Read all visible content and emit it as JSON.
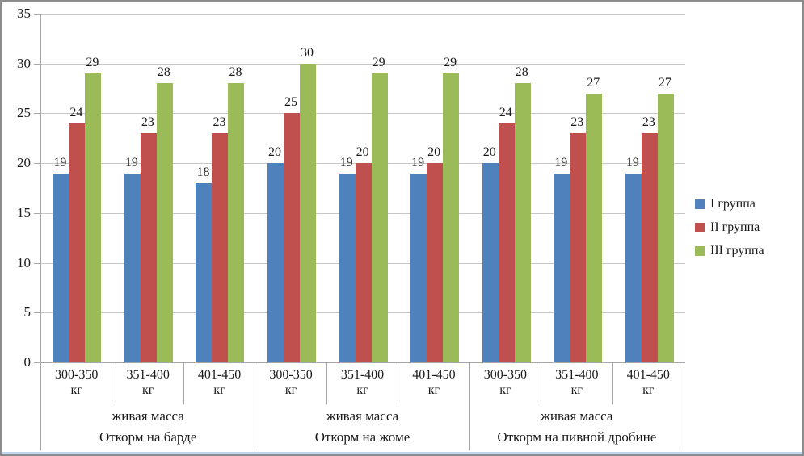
{
  "chart_data": {
    "type": "bar",
    "title": "",
    "xlabel": "",
    "ylabel": "",
    "ylim": [
      0,
      35
    ],
    "yticks": [
      0,
      5,
      10,
      15,
      20,
      25,
      30,
      35
    ],
    "grid": true,
    "data_labels": true,
    "legend_position": "right-middle",
    "groups": [
      {
        "label": "Откорм на барде",
        "sublabel": "живая масса",
        "categories": [
          {
            "range": "300-350",
            "unit": "кг"
          },
          {
            "range": "351-400",
            "unit": "кг"
          },
          {
            "range": "401-450",
            "unit": "кг"
          }
        ]
      },
      {
        "label": "Откорм на жоме",
        "sublabel": "живая масса",
        "categories": [
          {
            "range": "300-350",
            "unit": "кг"
          },
          {
            "range": "351-400",
            "unit": "кг"
          },
          {
            "range": "401-450",
            "unit": "кг"
          }
        ]
      },
      {
        "label": "Откорм на пивной дробине",
        "sublabel": "живая масса",
        "categories": [
          {
            "range": "300-350",
            "unit": "кг"
          },
          {
            "range": "351-400",
            "unit": "кг"
          },
          {
            "range": "401-450",
            "unit": "кг"
          }
        ]
      }
    ],
    "series": [
      {
        "name": "I группа",
        "color": "#4f81bd",
        "values": [
          19,
          19,
          18,
          20,
          19,
          19,
          20,
          19,
          19
        ]
      },
      {
        "name": "II группа",
        "color": "#c0504d",
        "values": [
          24,
          23,
          23,
          25,
          20,
          20,
          24,
          23,
          23
        ]
      },
      {
        "name": "III группа",
        "color": "#9bbb59",
        "values": [
          29,
          28,
          28,
          30,
          29,
          29,
          28,
          27,
          27
        ]
      }
    ],
    "style_colors": {
      "gridline": "#c6c6c6",
      "axis": "#a6a6a6",
      "text": "#1a1a1a",
      "frame_border": "#8c8c8c",
      "bottom_edge": "#c3d5ea"
    }
  }
}
